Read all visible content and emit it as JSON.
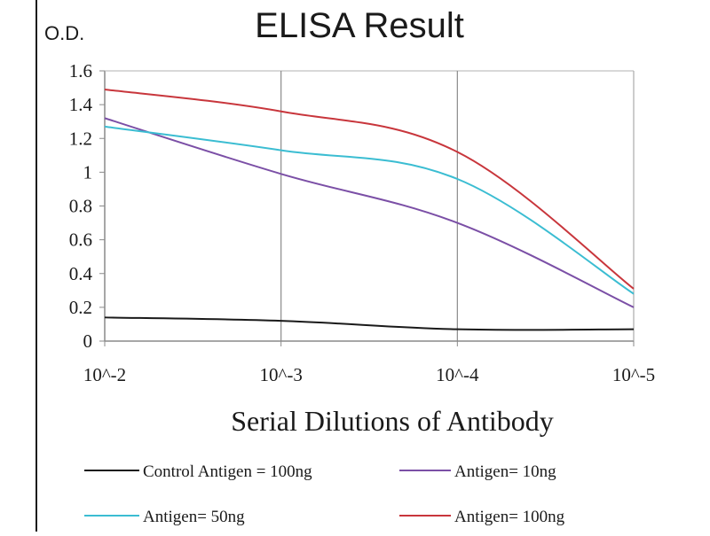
{
  "chart_data": {
    "type": "line",
    "title": "ELISA Result",
    "ylabel": "O.D.",
    "xlabel": "Serial Dilutions  of Antibody",
    "x": [
      "10^-2",
      "10^-3",
      "10^-4",
      "10^-5"
    ],
    "ylim": [
      0,
      1.6
    ],
    "yticks": [
      "0",
      "0.2",
      "0.4",
      "0.6",
      "0.8",
      "1",
      "1.2",
      "1.4",
      "1.6"
    ],
    "grid": "vertical",
    "legend_position": "bottom",
    "series": [
      {
        "name": "Control Antigen = 100ng",
        "color": "#1a1a1a",
        "values": [
          0.14,
          0.12,
          0.07,
          0.07
        ]
      },
      {
        "name": "Antigen= 10ng",
        "color": "#7b4fa6",
        "values": [
          1.32,
          0.99,
          0.7,
          0.2
        ]
      },
      {
        "name": "Antigen= 50ng",
        "color": "#3bbdd2",
        "values": [
          1.27,
          1.13,
          0.96,
          0.28
        ]
      },
      {
        "name": "Antigen= 100ng",
        "color": "#c8363c",
        "values": [
          1.49,
          1.36,
          1.12,
          0.31
        ]
      }
    ]
  }
}
